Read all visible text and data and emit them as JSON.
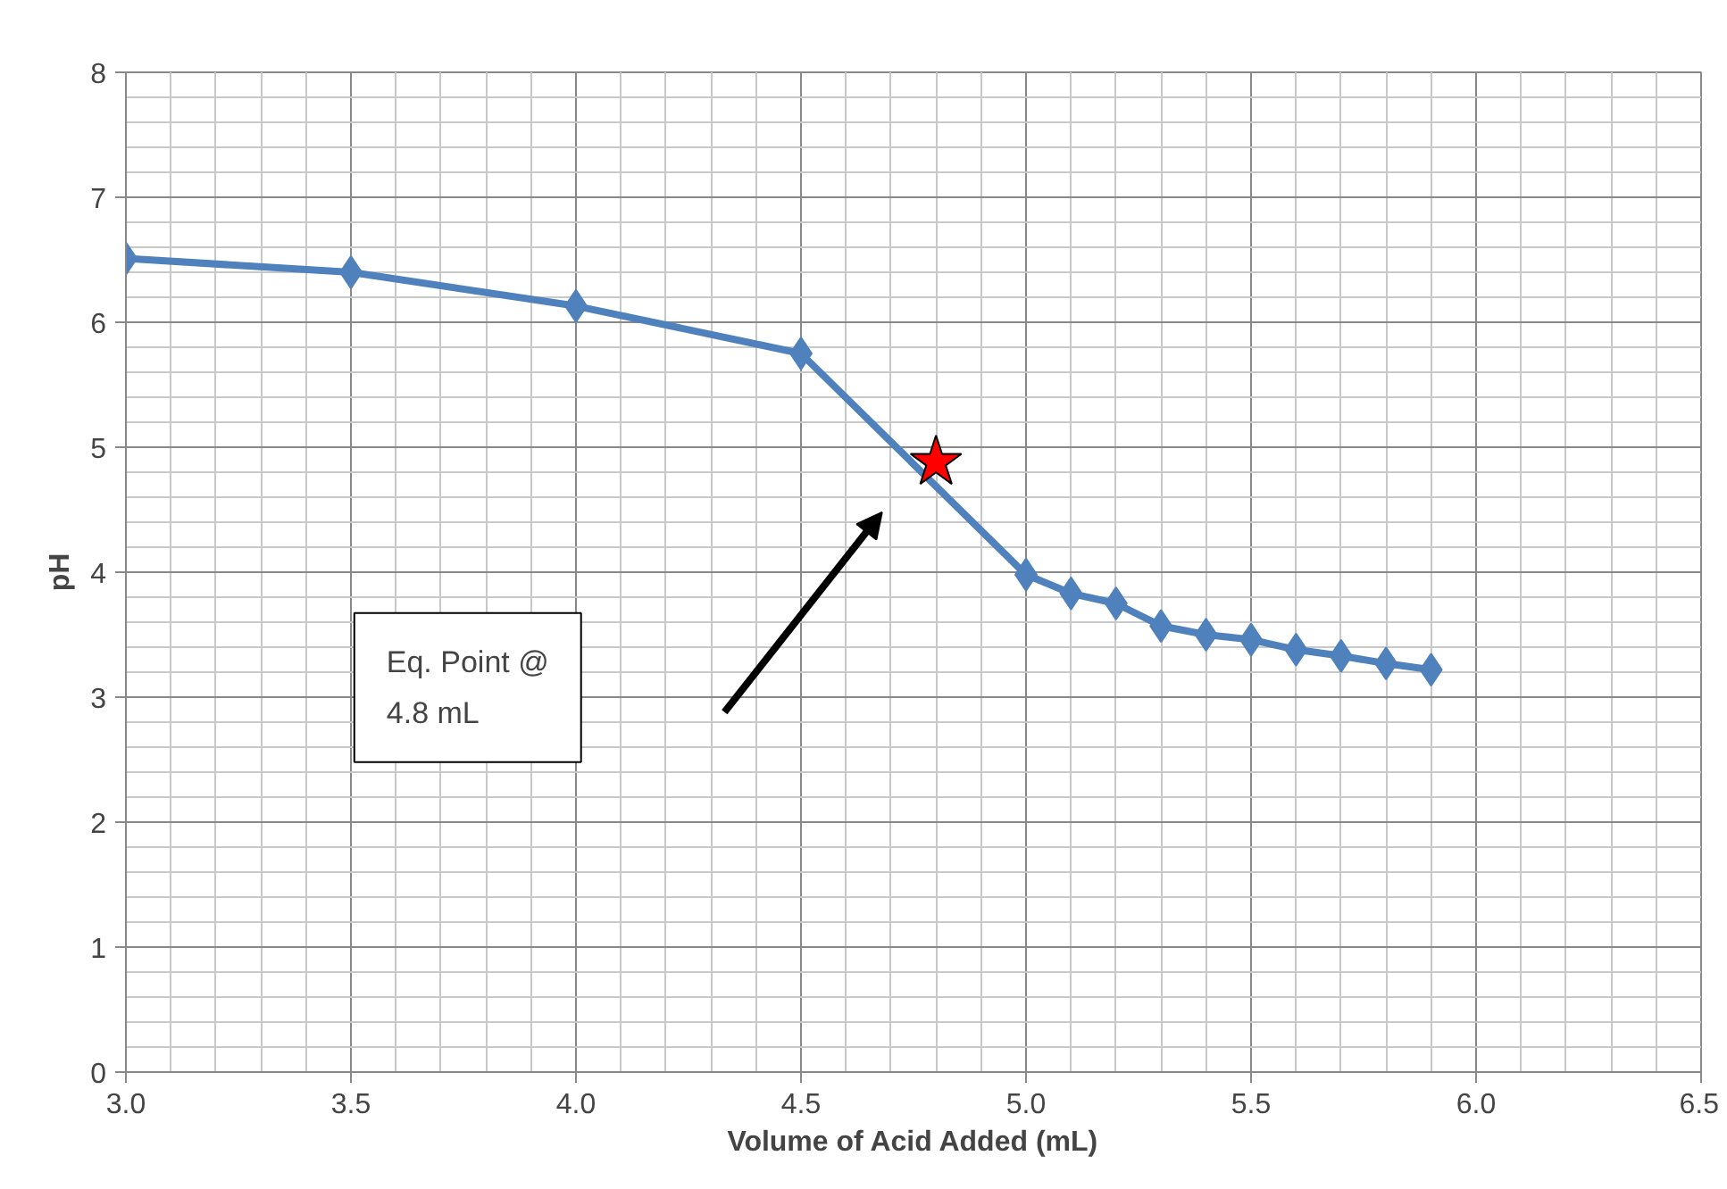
{
  "chart_data": {
    "type": "line",
    "xlabel": "Volume of Acid Added (mL)",
    "ylabel": "pH",
    "xlim": [
      3.0,
      6.5
    ],
    "ylim": [
      0,
      8
    ],
    "xticks": [
      {
        "value": 3.0,
        "label": "3.0"
      },
      {
        "value": 3.5,
        "label": "3.5"
      },
      {
        "value": 4.0,
        "label": "4.0"
      },
      {
        "value": 4.5,
        "label": "4.5"
      },
      {
        "value": 5.0,
        "label": "5.0"
      },
      {
        "value": 5.5,
        "label": "5.5"
      },
      {
        "value": 6.0,
        "label": "6.0"
      },
      {
        "value": 6.5,
        "label": "6.5"
      }
    ],
    "yticks": [
      0,
      1,
      2,
      3,
      4,
      5,
      6,
      7,
      8
    ],
    "grid": true,
    "marker": "diamond",
    "line_style": "solid",
    "series": [
      {
        "color": "#4f81bd",
        "x": [
          3.0,
          3.5,
          4.0,
          4.5,
          5.0,
          5.1,
          5.2,
          5.3,
          5.4,
          5.5,
          5.6,
          5.7,
          5.8,
          5.9
        ],
        "values": [
          6.51,
          6.4,
          6.13,
          5.75,
          3.98,
          3.83,
          3.75,
          3.57,
          3.5,
          3.46,
          3.38,
          3.33,
          3.27,
          3.22
        ]
      },
      {
        "type": "scatter",
        "marker": "star",
        "color": "#ff0000",
        "x": [
          4.8
        ],
        "values": [
          4.88
        ]
      }
    ],
    "annotations": [
      "Eq. Point @\n4.8 mL"
    ]
  }
}
